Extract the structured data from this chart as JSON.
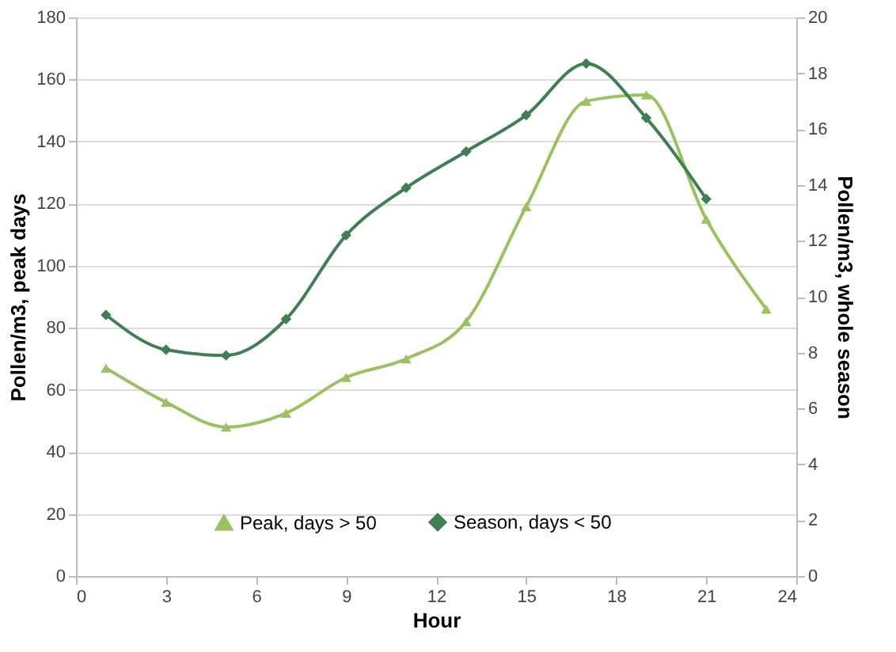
{
  "chart_data": {
    "type": "line",
    "xlabel": "Hour",
    "ylabel": "Pollen/m3, peak days",
    "y2label": "Pollen/m3, whole season",
    "x": [
      1,
      3,
      5,
      7,
      9,
      11,
      13,
      15,
      17,
      19,
      21,
      23
    ],
    "series": [
      {
        "name": "Peak, days > 50",
        "color": "#9bc262",
        "marker": "triangle",
        "values": [
          67,
          56,
          48,
          52.5,
          64,
          70,
          82,
          119,
          153,
          155,
          115,
          86
        ]
      },
      {
        "name": "Season, days < 50",
        "color": "#3f7f52",
        "marker": "diamond",
        "axis": "y2",
        "x": [
          1,
          3,
          5,
          7,
          9,
          11,
          13,
          15,
          17,
          19,
          21
        ],
        "values": [
          9.35,
          8.1,
          7.9,
          9.2,
          12.2,
          13.9,
          15.2,
          16.5,
          18.35,
          16.4,
          13.5
        ]
      }
    ],
    "xlim": [
      0,
      24
    ],
    "xticks": [
      0,
      3,
      6,
      9,
      12,
      15,
      18,
      21,
      24
    ],
    "ylim": [
      0,
      180
    ],
    "yticks": [
      0,
      20,
      40,
      60,
      80,
      100,
      120,
      140,
      160,
      180
    ],
    "y2lim": [
      0,
      20
    ],
    "y2ticks": [
      0,
      2,
      4,
      6,
      8,
      10,
      12,
      14,
      16,
      18,
      20
    ],
    "grid": "y",
    "legend": "bottom",
    "line_style": "solid"
  }
}
